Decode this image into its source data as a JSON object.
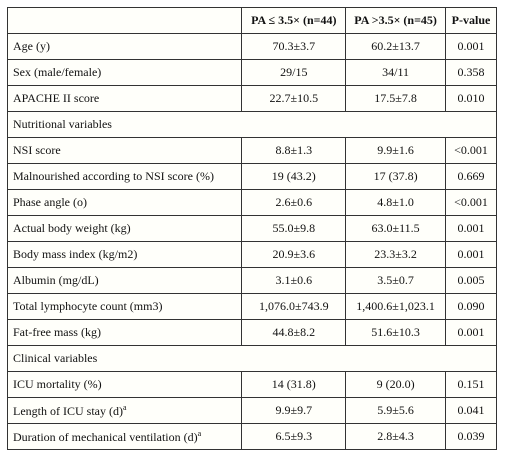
{
  "table": {
    "header": [
      "",
      "PA  ≤ 3.5× (n=44)",
      "PA >3.5× (n=45)",
      "P-value"
    ],
    "rows": [
      {
        "label": "Age (y)",
        "values": [
          "70.3±3.7",
          "60.2±13.7",
          "0.001"
        ]
      },
      {
        "label": "Sex (male/female)",
        "values": [
          "29/15",
          "34/11",
          "0.358"
        ]
      },
      {
        "label": "APACHE II score",
        "values": [
          "22.7±10.5",
          "17.5±7.8",
          "0.010"
        ]
      },
      {
        "section": "Nutritional variables"
      },
      {
        "label": "NSI score",
        "values": [
          "8.8±1.3",
          "9.9±1.6",
          "<0.001"
        ]
      },
      {
        "label": "Malnourished according to NSI score (%)",
        "values": [
          "19 (43.2)",
          "17 (37.8)",
          "0.669"
        ]
      },
      {
        "label": "Phase angle (o)",
        "values": [
          "2.6±0.6",
          "4.8±1.0",
          "<0.001"
        ]
      },
      {
        "label": "Actual body weight (kg)",
        "values": [
          "55.0±9.8",
          "63.0±11.5",
          "0.001"
        ]
      },
      {
        "label": "Body mass index (kg/m2)",
        "values": [
          "20.9±3.6",
          "23.3±3.2",
          "0.001"
        ]
      },
      {
        "label": "Albumin (mg/dL)",
        "values": [
          "3.1±0.6",
          "3.5±0.7",
          "0.005"
        ]
      },
      {
        "label": "Total lymphocyte count (mm3)",
        "values": [
          "1,076.0±743.9",
          "1,400.6±1,023.1",
          "0.090"
        ]
      },
      {
        "label": "Fat-free mass (kg)",
        "values": [
          "44.8±8.2",
          "51.6±10.3",
          "0.001"
        ]
      },
      {
        "section": "Clinical variables"
      },
      {
        "label": "ICU mortality (%)",
        "values": [
          "14 (31.8)",
          "9 (20.0)",
          "0.151"
        ]
      },
      {
        "label": "Length of ICU stay (d)",
        "sup": "a",
        "values": [
          "9.9±9.7",
          "5.9±5.6",
          "0.041"
        ]
      },
      {
        "label": "Duration of mechanical ventilation (d)",
        "sup": "a",
        "values": [
          "6.5±9.3",
          "2.8±4.3",
          "0.039"
        ]
      }
    ]
  }
}
